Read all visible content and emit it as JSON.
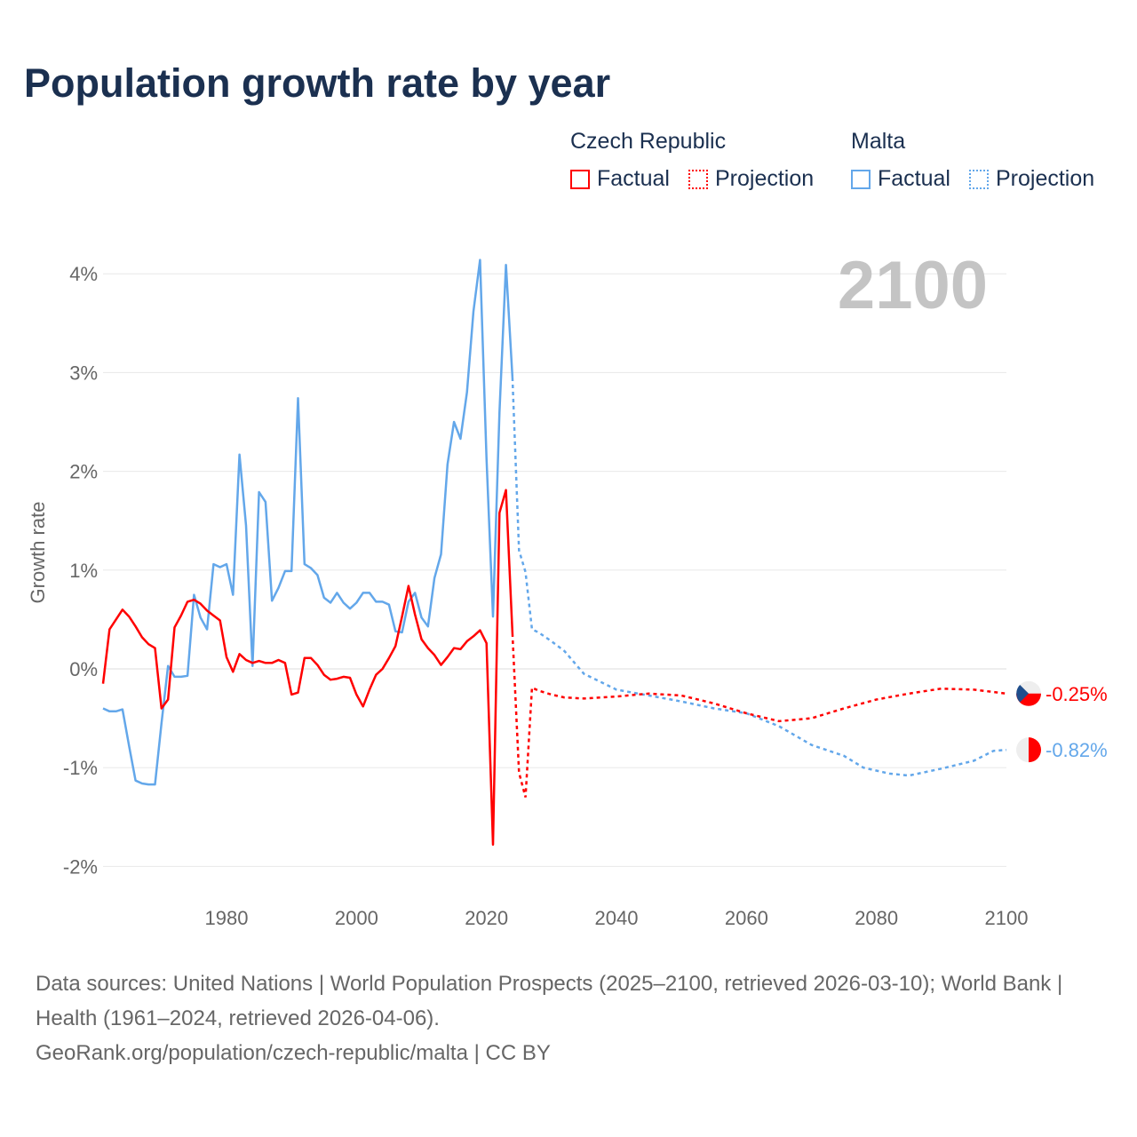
{
  "chart_data": {
    "type": "line",
    "title": "Population growth rate by year",
    "ylabel": "Growth rate",
    "xlabel": "",
    "xlim": [
      1961,
      2100
    ],
    "ylim": [
      -2.2,
      4.3
    ],
    "x_ticks": [
      1980,
      2000,
      2020,
      2040,
      2060,
      2080,
      2100
    ],
    "y_ticks": [
      -2,
      -1,
      0,
      1,
      2,
      3,
      4
    ],
    "y_tick_labels": [
      "-2%",
      "-1%",
      "0%",
      "1%",
      "2%",
      "3%",
      "4%"
    ],
    "grid": true,
    "current_year": "2100",
    "legend": {
      "placement": "top-right",
      "groups": [
        {
          "name": "Czech Republic",
          "factual": "Factual",
          "projection": "Projection"
        },
        {
          "name": "Malta",
          "factual": "Factual",
          "projection": "Projection"
        }
      ]
    },
    "series": [
      {
        "name": "Czech Republic",
        "color": "#ff0000",
        "end_label": "-0.25%",
        "factual": {
          "x": [
            1961,
            1962,
            1963,
            1964,
            1965,
            1966,
            1967,
            1968,
            1969,
            1970,
            1971,
            1972,
            1973,
            1974,
            1975,
            1976,
            1977,
            1978,
            1979,
            1980,
            1981,
            1982,
            1983,
            1984,
            1985,
            1986,
            1987,
            1988,
            1989,
            1990,
            1991,
            1992,
            1993,
            1994,
            1995,
            1996,
            1997,
            1998,
            1999,
            2000,
            2001,
            2002,
            2003,
            2004,
            2005,
            2006,
            2007,
            2008,
            2009,
            2010,
            2011,
            2012,
            2013,
            2014,
            2015,
            2016,
            2017,
            2018,
            2019,
            2020,
            2021,
            2022,
            2023,
            2024
          ],
          "y": [
            -0.15,
            0.4,
            0.5,
            0.6,
            0.53,
            0.43,
            0.32,
            0.25,
            0.21,
            -0.4,
            -0.31,
            0.42,
            0.54,
            0.68,
            0.7,
            0.66,
            0.59,
            0.54,
            0.49,
            0.12,
            -0.03,
            0.15,
            0.09,
            0.06,
            0.08,
            0.06,
            0.06,
            0.09,
            0.06,
            -0.26,
            -0.24,
            0.11,
            0.11,
            0.04,
            -0.06,
            -0.11,
            -0.1,
            -0.08,
            -0.09,
            -0.26,
            -0.38,
            -0.21,
            -0.06,
            0.0,
            0.11,
            0.23,
            0.53,
            0.84,
            0.55,
            0.3,
            0.21,
            0.14,
            0.04,
            0.12,
            0.21,
            0.2,
            0.28,
            0.33,
            0.39,
            0.26,
            -1.78,
            1.58,
            1.81,
            0.36
          ]
        },
        "projection": {
          "x": [
            2024,
            2025,
            2026,
            2027,
            2028,
            2030,
            2032,
            2035,
            2040,
            2045,
            2050,
            2055,
            2060,
            2065,
            2070,
            2075,
            2080,
            2085,
            2090,
            2095,
            2100
          ],
          "y": [
            0.36,
            -1.05,
            -1.3,
            -0.19,
            -0.22,
            -0.26,
            -0.29,
            -0.3,
            -0.28,
            -0.25,
            -0.27,
            -0.35,
            -0.45,
            -0.53,
            -0.5,
            -0.4,
            -0.31,
            -0.25,
            -0.2,
            -0.21,
            -0.25
          ]
        }
      },
      {
        "name": "Malta",
        "color": "#63a7ea",
        "end_label": "-0.82%",
        "factual": {
          "x": [
            1961,
            1962,
            1963,
            1964,
            1965,
            1966,
            1967,
            1968,
            1969,
            1970,
            1971,
            1972,
            1973,
            1974,
            1975,
            1976,
            1977,
            1978,
            1979,
            1980,
            1981,
            1982,
            1983,
            1984,
            1985,
            1986,
            1987,
            1988,
            1989,
            1990,
            1991,
            1992,
            1993,
            1994,
            1995,
            1996,
            1997,
            1998,
            1999,
            2000,
            2001,
            2002,
            2003,
            2004,
            2005,
            2006,
            2007,
            2008,
            2009,
            2010,
            2011,
            2012,
            2013,
            2014,
            2015,
            2016,
            2017,
            2018,
            2019,
            2020,
            2021,
            2022,
            2023,
            2024
          ],
          "y": [
            -0.4,
            -0.43,
            -0.43,
            -0.41,
            -0.78,
            -1.13,
            -1.16,
            -1.17,
            -1.17,
            -0.55,
            0.03,
            -0.08,
            -0.08,
            -0.07,
            0.75,
            0.52,
            0.4,
            1.06,
            1.03,
            1.06,
            0.75,
            2.17,
            1.45,
            0.03,
            1.79,
            1.69,
            0.69,
            0.82,
            0.99,
            0.99,
            2.74,
            1.06,
            1.02,
            0.95,
            0.72,
            0.67,
            0.77,
            0.67,
            0.61,
            0.67,
            0.77,
            0.77,
            0.68,
            0.68,
            0.65,
            0.38,
            0.37,
            0.68,
            0.77,
            0.52,
            0.43,
            0.92,
            1.16,
            2.07,
            2.5,
            2.33,
            2.8,
            3.62,
            4.14,
            2.13,
            0.53,
            2.6,
            4.09,
            2.95
          ]
        },
        "projection": {
          "x": [
            2024,
            2025,
            2026,
            2027,
            2028,
            2030,
            2032,
            2035,
            2040,
            2045,
            2050,
            2055,
            2060,
            2065,
            2070,
            2075,
            2078,
            2082,
            2085,
            2090,
            2095,
            2098,
            2100
          ],
          "y": [
            2.95,
            1.2,
            0.98,
            0.4,
            0.37,
            0.28,
            0.18,
            -0.05,
            -0.21,
            -0.27,
            -0.33,
            -0.4,
            -0.45,
            -0.58,
            -0.77,
            -0.88,
            -1.0,
            -1.06,
            -1.08,
            -1.01,
            -0.93,
            -0.83,
            -0.82
          ]
        }
      }
    ]
  },
  "footer": {
    "sources": "Data sources: United Nations | World Population Prospects (2025–2100, retrieved 2026-03-10); World Bank | Health (1961–2024, retrieved 2026-04-06).",
    "credit": "GeoRank.org/population/czech-republic/malta | CC BY"
  }
}
